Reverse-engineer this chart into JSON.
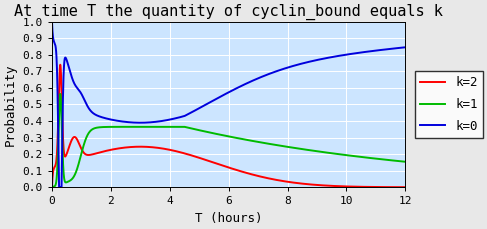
{
  "title": "At time T the quantity of cyclin_bound equals k",
  "xlabel": "T (hours)",
  "ylabel": "Probability",
  "xlim": [
    0,
    12
  ],
  "ylim": [
    0,
    1
  ],
  "plot_bg": "#cce5ff",
  "fig_bg": "#e8e8e8",
  "grid_color": "#ffffff",
  "line_colors": {
    "k2": "#ff0000",
    "k1": "#00bb00",
    "k0": "#0000dd"
  },
  "title_fontsize": 11,
  "label_fontsize": 9,
  "tick_fontsize": 8,
  "xticks": [
    0,
    2,
    4,
    6,
    8,
    10,
    12
  ],
  "yticks": [
    0,
    0.1,
    0.2,
    0.3,
    0.4,
    0.5,
    0.6,
    0.7,
    0.8,
    0.9,
    1
  ]
}
